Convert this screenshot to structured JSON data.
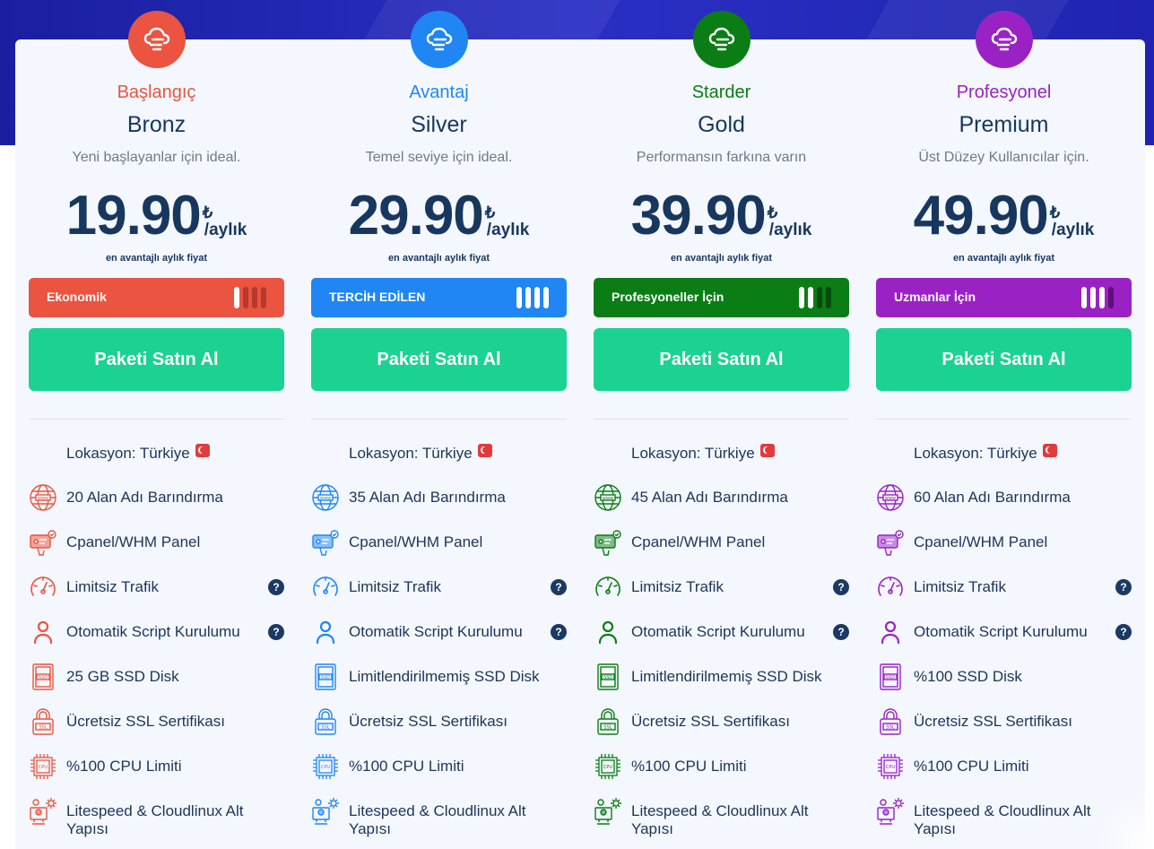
{
  "price_note": "en avantajlı aylık fiyat",
  "currency": "₺",
  "period": "/aylık",
  "buy_label": "Paketi Satın Al",
  "location_label": "Lokasyon: Türkiye",
  "help_glyph": "?",
  "plans": [
    {
      "tier": "Başlangıç",
      "name": "Bronz",
      "description": "Yeni başlayanlar için ideal.",
      "price": "19.90",
      "badge": "Ekonomik",
      "badge_level": 1,
      "accent": "#ea5440",
      "dim": "#b6392b",
      "features": [
        {
          "icon": "globe-icon",
          "text": "20 Alan Adı Barındırma",
          "help": false
        },
        {
          "icon": "panel-icon",
          "text": "Cpanel/WHM Panel",
          "help": false
        },
        {
          "icon": "speedometer-icon",
          "text": "Limitsiz Trafik",
          "help": true
        },
        {
          "icon": "user-icon",
          "text": "Otomatik Script Kurulumu",
          "help": true
        },
        {
          "icon": "ssd-icon",
          "text": "25 GB SSD Disk",
          "help": false
        },
        {
          "icon": "ssl-lock-icon",
          "text": "Ücretsiz SSL Sertifikası",
          "help": false
        },
        {
          "icon": "cpu-icon",
          "text": "%100 CPU Limiti",
          "help": false
        },
        {
          "icon": "server-gear-icon",
          "text": "Litespeed & Cloudlinux Alt Yapısı",
          "help": false
        }
      ]
    },
    {
      "tier": "Avantaj",
      "name": "Silver",
      "description": "Temel seviye için ideal.",
      "price": "29.90",
      "badge": "TERCİH EDİLEN",
      "badge_level": 4,
      "accent": "#1f86f4",
      "dim": "#1466c4",
      "features": [
        {
          "icon": "globe-icon",
          "text": "35 Alan Adı Barındırma",
          "help": false
        },
        {
          "icon": "panel-icon",
          "text": "Cpanel/WHM Panel",
          "help": false
        },
        {
          "icon": "speedometer-icon",
          "text": "Limitsiz Trafik",
          "help": true
        },
        {
          "icon": "user-icon",
          "text": "Otomatik Script Kurulumu",
          "help": true
        },
        {
          "icon": "ssd-icon",
          "text": "Limitlendirilmemiş SSD Disk",
          "help": false
        },
        {
          "icon": "ssl-lock-icon",
          "text": "Ücretsiz SSL Sertifikası",
          "help": false
        },
        {
          "icon": "cpu-icon",
          "text": "%100 CPU Limiti",
          "help": false
        },
        {
          "icon": "server-gear-icon",
          "text": "Litespeed & Cloudlinux Alt Yapısı",
          "help": false
        }
      ]
    },
    {
      "tier": "Starder",
      "name": "Gold",
      "description": "Performansın farkına varın",
      "price": "39.90",
      "badge": "Profesyoneller İçin",
      "badge_level": 2,
      "accent": "#0a7d14",
      "dim": "#0a4a10",
      "features": [
        {
          "icon": "globe-icon",
          "text": "45 Alan Adı Barındırma",
          "help": false
        },
        {
          "icon": "panel-icon",
          "text": "Cpanel/WHM Panel",
          "help": false
        },
        {
          "icon": "speedometer-icon",
          "text": "Limitsiz Trafik",
          "help": true
        },
        {
          "icon": "user-icon",
          "text": "Otomatik Script Kurulumu",
          "help": true
        },
        {
          "icon": "ssd-icon",
          "text": "Limitlendirilmemiş SSD Disk",
          "help": false
        },
        {
          "icon": "ssl-lock-icon",
          "text": "Ücretsiz SSL Sertifikası",
          "help": false
        },
        {
          "icon": "cpu-icon",
          "text": "%100 CPU Limiti",
          "help": false
        },
        {
          "icon": "server-gear-icon",
          "text": "Litespeed & Cloudlinux Alt Yapısı",
          "help": false
        }
      ]
    },
    {
      "tier": "Profesyonel",
      "name": "Premium",
      "description": "Üst Düzey Kullanıcılar için.",
      "price": "49.90",
      "badge": "Uzmanlar İçin",
      "badge_level": 3,
      "accent": "#9a22c4",
      "dim": "#5e1078",
      "features": [
        {
          "icon": "globe-icon",
          "text": "60 Alan Adı Barındırma",
          "help": false
        },
        {
          "icon": "panel-icon",
          "text": "Cpanel/WHM Panel",
          "help": false
        },
        {
          "icon": "speedometer-icon",
          "text": "Limitsiz Trafik",
          "help": true
        },
        {
          "icon": "user-icon",
          "text": "Otomatik Script Kurulumu",
          "help": true
        },
        {
          "icon": "ssd-icon",
          "text": "%100 SSD Disk",
          "help": false
        },
        {
          "icon": "ssl-lock-icon",
          "text": "Ücretsiz SSL Sertifikası",
          "help": false
        },
        {
          "icon": "cpu-icon",
          "text": "%100 CPU Limiti",
          "help": false
        },
        {
          "icon": "server-gear-icon",
          "text": "Litespeed & Cloudlinux Alt Yapısı",
          "help": false
        }
      ]
    }
  ]
}
